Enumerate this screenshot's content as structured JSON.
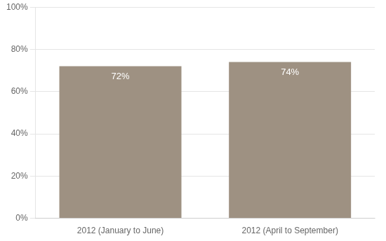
{
  "chart_data": {
    "type": "bar",
    "categories": [
      "2012 (January to June)",
      "2012 (April to September)"
    ],
    "values": [
      0.72,
      0.74
    ],
    "value_labels": [
      "72%",
      "74%"
    ],
    "data_labels": true,
    "color": "#9e9182",
    "ylim": [
      0,
      1.0
    ],
    "yticks": [
      {
        "value": 0.0,
        "label": "0%"
      },
      {
        "value": 0.2,
        "label": "20%"
      },
      {
        "value": 0.4,
        "label": "40%"
      },
      {
        "value": 0.6,
        "label": "60%"
      },
      {
        "value": 0.8,
        "label": "80%"
      },
      {
        "value": 1.0,
        "label": "100%"
      }
    ],
    "grid": true
  }
}
